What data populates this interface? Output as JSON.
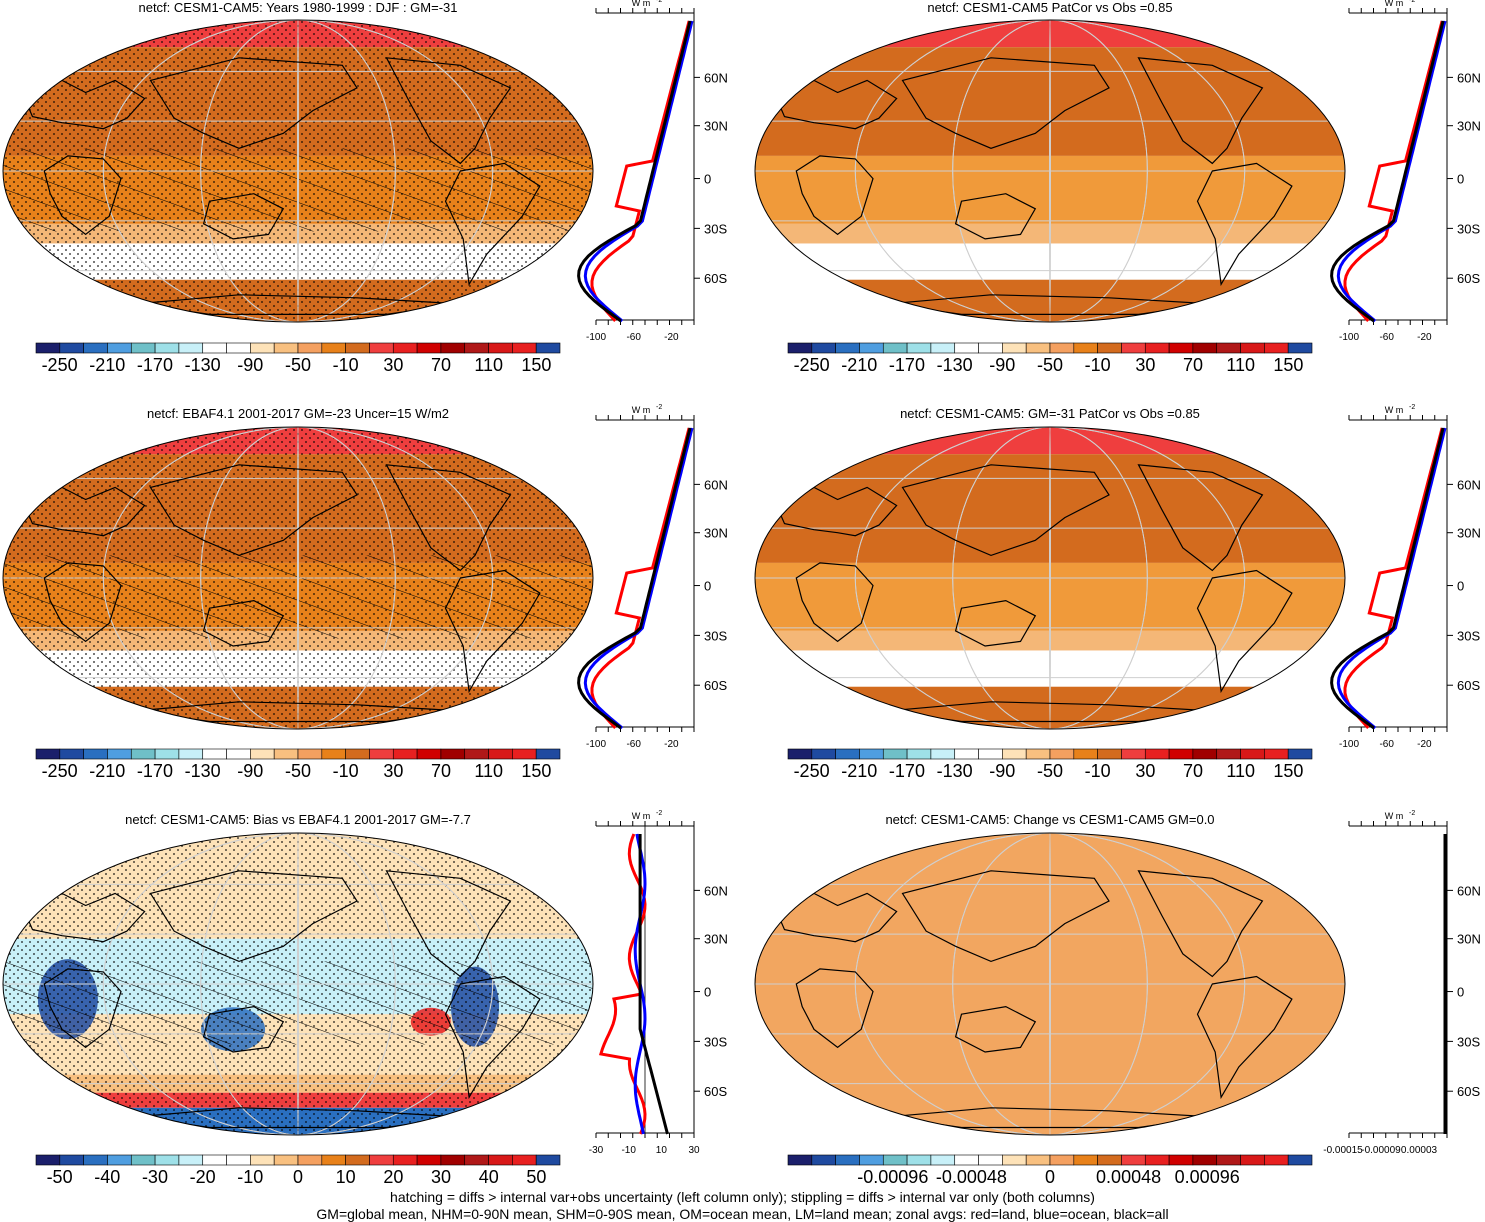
{
  "colors": {
    "ocean_base": "#d36b1e",
    "tropics": "#e8811a",
    "light_orange": "#f4b777",
    "white_band": "#ffffff",
    "polar_red": "#ef3e3e",
    "change_fill": "#f2a660",
    "land": "#000000",
    "zonal_land": "#ff0000",
    "zonal_ocean": "#0000ff",
    "zonal_all": "#000000"
  },
  "palette": {
    "main": [
      "#1b1f6b",
      "#1f4aa0",
      "#2a6fc0",
      "#4f9ee0",
      "#6fc0c8",
      "#9ee0e8",
      "#c8f0f8",
      "#ffffff",
      "#ffffff",
      "#fde2b8",
      "#f8c080",
      "#f4a060",
      "#e8811a",
      "#d36b1e",
      "#ef3e3e",
      "#e82020",
      "#d00000",
      "#a00000",
      "#b01818",
      "#d81818",
      "#e82020",
      "#1f4aa0"
    ],
    "bias": [
      "#1b1f6b",
      "#1f4aa0",
      "#2a6fc0",
      "#4f9ee0",
      "#6fc0c8",
      "#9ee0e8",
      "#c8f0f8",
      "#ffffff",
      "#ffffff",
      "#fde2b8",
      "#f8c080",
      "#f4a060",
      "#e8811a",
      "#d36b1e",
      "#ef3e3e",
      "#e82020",
      "#d00000",
      "#a00000",
      "#b01818",
      "#d81818",
      "#e82020",
      "#1f4aa0"
    ],
    "change": [
      "#1b1f6b",
      "#1f4aa0",
      "#2a6fc0",
      "#4f9ee0",
      "#6fc0c8",
      "#9ee0e8",
      "#c8f0f8",
      "#ffffff",
      "#ffffff",
      "#fde2b8",
      "#f8c080",
      "#f4a060",
      "#e8811a",
      "#d36b1e",
      "#ef3e3e",
      "#e82020",
      "#d00000",
      "#a00000",
      "#b01818",
      "#d81818",
      "#e82020",
      "#1f4aa0"
    ]
  },
  "colorbar_labels": {
    "main": [
      "-250",
      "-210",
      "-170",
      "-130",
      "-90",
      "-50",
      "-10",
      "30",
      "70",
      "110",
      "150"
    ],
    "bias": [
      "-50",
      "-40",
      "-30",
      "-20",
      "-10",
      "0",
      "10",
      "20",
      "30",
      "40",
      "50"
    ],
    "change": [
      "-0.00096",
      "-0.00048",
      "0",
      "0.00048",
      "0.00096"
    ]
  },
  "panels": [
    {
      "title": "netcf: CESM1-CAM5: Years 1980-1999 : DJF : GM=-31",
      "style": "model",
      "hatch": true,
      "stipple": true,
      "colorbar": "main"
    },
    {
      "title": "netcf: CESM1-CAM5 PatCor vs Obs =0.85",
      "style": "model_clean",
      "hatch": false,
      "stipple": false,
      "colorbar": "main"
    },
    {
      "title": "netcf: EBAF4.1 2001-2017 GM=-23 Uncer=15 W/m2",
      "style": "obs",
      "hatch": true,
      "stipple": true,
      "colorbar": "main"
    },
    {
      "title": "netcf: CESM1-CAM5: GM=-31 PatCor vs Obs =0.85",
      "style": "model_clean",
      "hatch": false,
      "stipple": false,
      "colorbar": "main"
    },
    {
      "title": "netcf: CESM1-CAM5: Bias vs EBAF4.1 2001-2017 GM=-7.7",
      "style": "bias",
      "hatch": true,
      "stipple": true,
      "colorbar": "bias"
    },
    {
      "title": "netcf: CESM1-CAM5: Change vs CESM1-CAM5 GM=0.0",
      "style": "change",
      "hatch": false,
      "stipple": false,
      "colorbar": "change"
    }
  ],
  "zonal": {
    "unit": "W m",
    "unit_exp": "-2",
    "lat_labels": [
      "60N",
      "30N",
      "0",
      "30S",
      "60S"
    ],
    "x_ticks_main": [
      "-100",
      "-60",
      "-20"
    ],
    "x_ticks_bias": [
      "-30",
      "-10",
      "10",
      "30"
    ],
    "x_ticks_change": [
      "-0.00015",
      "-0.00009",
      "0.00003"
    ]
  },
  "footer": {
    "line1": "hatching = diffs > internal var+obs uncertainty (left column only); stippling = diffs > internal var only (both columns)",
    "line2": "GM=global mean, NHM=0-90N mean, SHM=0-90S mean, OM=ocean mean, LM=land mean; zonal avgs: red=land, blue=ocean, black=all"
  }
}
